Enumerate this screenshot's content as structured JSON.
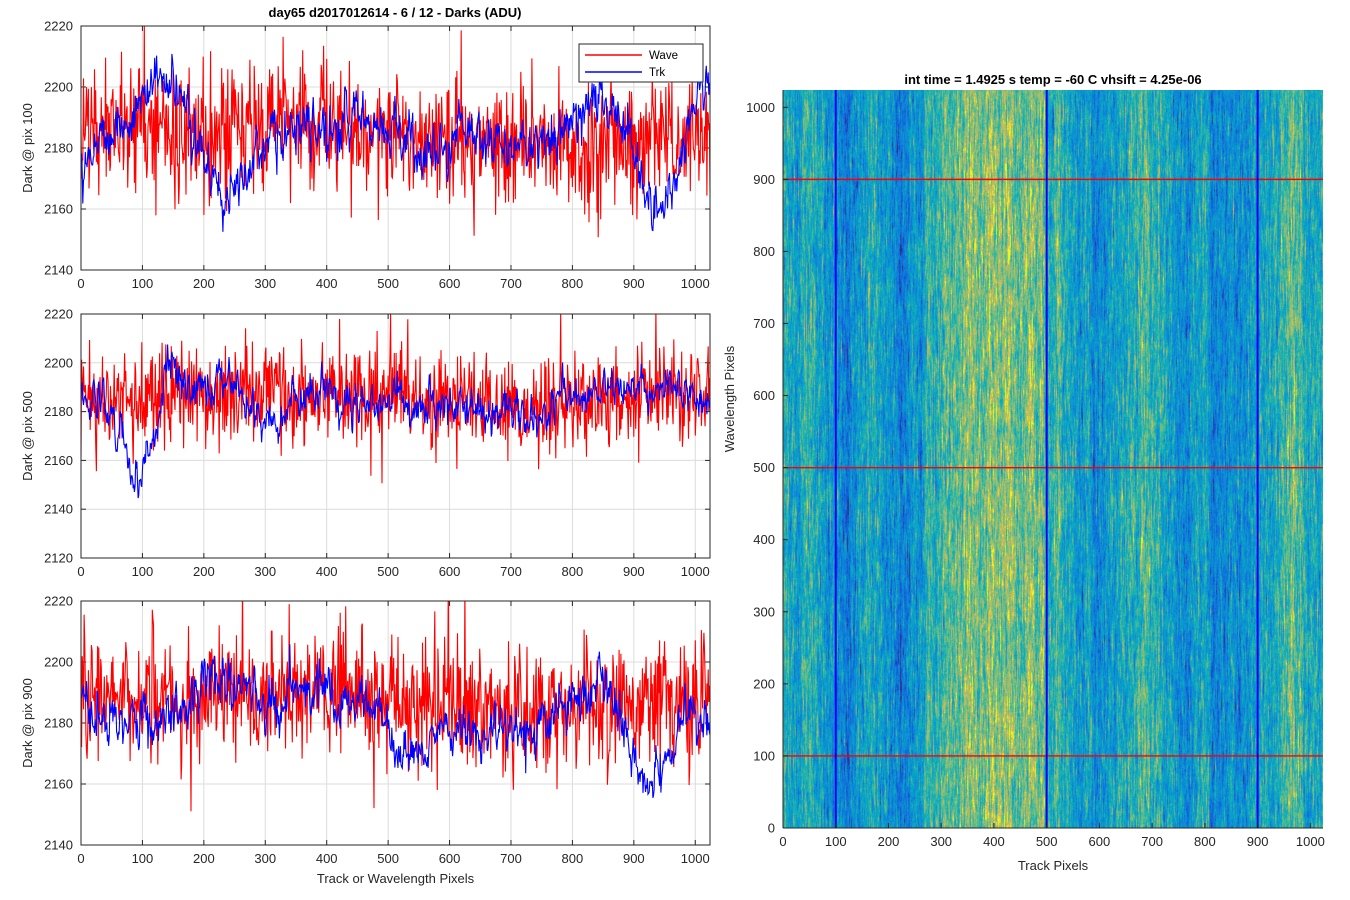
{
  "figure": {
    "suptitle": "day65 d2017012614 - 6 / 12 - Darks (ADU)",
    "colors": {
      "wave": "#ff0000",
      "trk": "#0000ff",
      "grid": "#dcdcdc",
      "axis": "#262626"
    }
  },
  "chart_data": [
    {
      "type": "line",
      "ylabel": "Dark @ pix 100",
      "xlim": [
        0,
        1024
      ],
      "ylim": [
        2140,
        2220
      ],
      "xticks": [
        0,
        100,
        200,
        300,
        400,
        500,
        600,
        700,
        800,
        900,
        1000
      ],
      "yticks": [
        2140,
        2160,
        2180,
        2200,
        2220
      ],
      "grid": true,
      "legend": {
        "placement": "top-right",
        "entries": [
          "Wave",
          "Trk"
        ]
      },
      "series": [
        {
          "name": "Wave",
          "color": "#ff0000",
          "mean": 2186,
          "noise": 10,
          "features": [
            [
              0,
              2186
            ],
            [
              200,
              2184
            ],
            [
              360,
              2188
            ],
            [
              600,
              2184
            ],
            [
              790,
              2180
            ],
            [
              1024,
              2184
            ]
          ]
        },
        {
          "name": "Trk",
          "color": "#0000ff",
          "mean": 2182,
          "noise": 4.5,
          "features": [
            [
              0,
              2176
            ],
            [
              40,
              2186
            ],
            [
              80,
              2188
            ],
            [
              120,
              2204
            ],
            [
              160,
              2196
            ],
            [
              200,
              2178
            ],
            [
              230,
              2160
            ],
            [
              260,
              2176
            ],
            [
              330,
              2184
            ],
            [
              380,
              2186
            ],
            [
              480,
              2190
            ],
            [
              520,
              2184
            ],
            [
              570,
              2176
            ],
            [
              620,
              2186
            ],
            [
              700,
              2180
            ],
            [
              760,
              2182
            ],
            [
              800,
              2192
            ],
            [
              840,
              2196
            ],
            [
              880,
              2190
            ],
            [
              910,
              2172
            ],
            [
              940,
              2158
            ],
            [
              980,
              2176
            ],
            [
              1010,
              2202
            ],
            [
              1024,
              2198
            ]
          ]
        }
      ]
    },
    {
      "type": "line",
      "ylabel": "Dark @ pix 500",
      "xlim": [
        0,
        1024
      ],
      "ylim": [
        2120,
        2220
      ],
      "xticks": [
        0,
        100,
        200,
        300,
        400,
        500,
        600,
        700,
        800,
        900,
        1000
      ],
      "yticks": [
        2120,
        2140,
        2160,
        2180,
        2200,
        2220
      ],
      "grid": true,
      "series": [
        {
          "name": "Wave",
          "color": "#ff0000",
          "mean": 2186,
          "noise": 10,
          "features": [
            [
              0,
              2186
            ],
            [
              300,
              2188
            ],
            [
              500,
              2186
            ],
            [
              720,
              2182
            ],
            [
              1024,
              2186
            ]
          ]
        },
        {
          "name": "Trk",
          "color": "#0000ff",
          "mean": 2184,
          "noise": 4.5,
          "features": [
            [
              0,
              2186
            ],
            [
              40,
              2182
            ],
            [
              70,
              2172
            ],
            [
              95,
              2152
            ],
            [
              120,
              2170
            ],
            [
              140,
              2200
            ],
            [
              180,
              2188
            ],
            [
              240,
              2196
            ],
            [
              280,
              2178
            ],
            [
              320,
              2174
            ],
            [
              350,
              2186
            ],
            [
              400,
              2190
            ],
            [
              440,
              2182
            ],
            [
              480,
              2184
            ],
            [
              520,
              2186
            ],
            [
              560,
              2180
            ],
            [
              600,
              2184
            ],
            [
              640,
              2182
            ],
            [
              700,
              2182
            ],
            [
              740,
              2176
            ],
            [
              780,
              2186
            ],
            [
              820,
              2188
            ],
            [
              870,
              2190
            ],
            [
              940,
              2190
            ],
            [
              1000,
              2188
            ],
            [
              1024,
              2180
            ]
          ]
        }
      ]
    },
    {
      "type": "line",
      "ylabel": "Dark @ pix 900",
      "xlabel": "Track or Wavelength Pixels",
      "xlim": [
        0,
        1024
      ],
      "ylim": [
        2140,
        2220
      ],
      "xticks": [
        0,
        100,
        200,
        300,
        400,
        500,
        600,
        700,
        800,
        900,
        1000
      ],
      "yticks": [
        2140,
        2160,
        2180,
        2200,
        2220
      ],
      "grid": true,
      "series": [
        {
          "name": "Wave",
          "color": "#ff0000",
          "mean": 2186,
          "noise": 10,
          "features": [
            [
              0,
              2186
            ],
            [
              300,
              2190
            ],
            [
              500,
              2188
            ],
            [
              700,
              2184
            ],
            [
              1024,
              2188
            ]
          ]
        },
        {
          "name": "Trk",
          "color": "#0000ff",
          "mean": 2182,
          "noise": 4.5,
          "features": [
            [
              0,
              2184
            ],
            [
              60,
              2180
            ],
            [
              150,
              2182
            ],
            [
              210,
              2196
            ],
            [
              260,
              2190
            ],
            [
              300,
              2186
            ],
            [
              360,
              2194
            ],
            [
              420,
              2186
            ],
            [
              480,
              2184
            ],
            [
              510,
              2172
            ],
            [
              560,
              2172
            ],
            [
              620,
              2176
            ],
            [
              700,
              2176
            ],
            [
              760,
              2180
            ],
            [
              820,
              2188
            ],
            [
              850,
              2196
            ],
            [
              880,
              2180
            ],
            [
              920,
              2160
            ],
            [
              950,
              2164
            ],
            [
              990,
              2184
            ],
            [
              1024,
              2178
            ]
          ]
        }
      ]
    },
    {
      "type": "heatmap",
      "title": "int time = 1.4925 s    temp = -60 C    vhsift = 4.25e-06",
      "xlabel": "Track Pixels",
      "ylabel": "Wavelength Pixels",
      "xlim": [
        0,
        1024
      ],
      "ylim": [
        0,
        1024
      ],
      "xticks": [
        0,
        100,
        200,
        300,
        400,
        500,
        600,
        700,
        800,
        900,
        1000
      ],
      "yticks": [
        0,
        100,
        200,
        300,
        400,
        500,
        600,
        700,
        800,
        900,
        1000
      ],
      "colormap": "parula",
      "vertical_lines": {
        "color": "#0000ff",
        "x": [
          100,
          500,
          900
        ]
      },
      "horizontal_lines": {
        "color": "#ff0000",
        "y": [
          100,
          500,
          900
        ]
      }
    }
  ]
}
